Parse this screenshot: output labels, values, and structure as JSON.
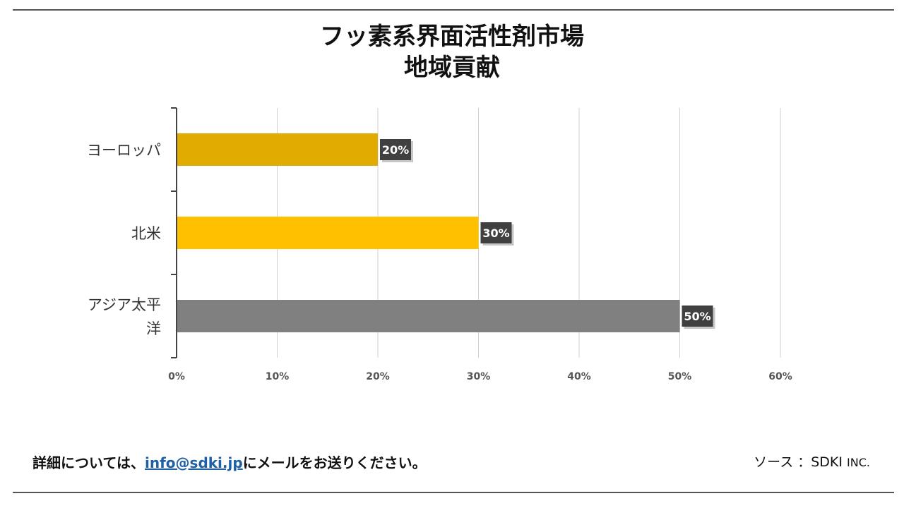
{
  "chart_data": {
    "type": "bar",
    "orientation": "horizontal",
    "title": [
      "フッ素系界面活性剤市場",
      "地域貢献"
    ],
    "categories": [
      "ヨーロッパ",
      "北米",
      "アジア太平洋"
    ],
    "category_lines": [
      [
        "ヨーロッパ"
      ],
      [
        "北米"
      ],
      [
        "アジア太平",
        "洋"
      ]
    ],
    "values": [
      20,
      30,
      50
    ],
    "data_labels": [
      "20%",
      "30%",
      "50%"
    ],
    "colors": [
      "#E0AC00",
      "#FFC000",
      "#808080"
    ],
    "xlim": [
      0,
      60
    ],
    "xticks": [
      "0%",
      "10%",
      "20%",
      "30%",
      "40%",
      "50%",
      "60%"
    ],
    "grid": true,
    "xlabel": "",
    "ylabel": ""
  },
  "footer": {
    "contact_prefix": "詳細については、",
    "email": "info@sdki.jp",
    "contact_suffix": "にメールをお送りください。",
    "source_label": "ソース ：SDKI",
    "source_suffix": "INC."
  }
}
